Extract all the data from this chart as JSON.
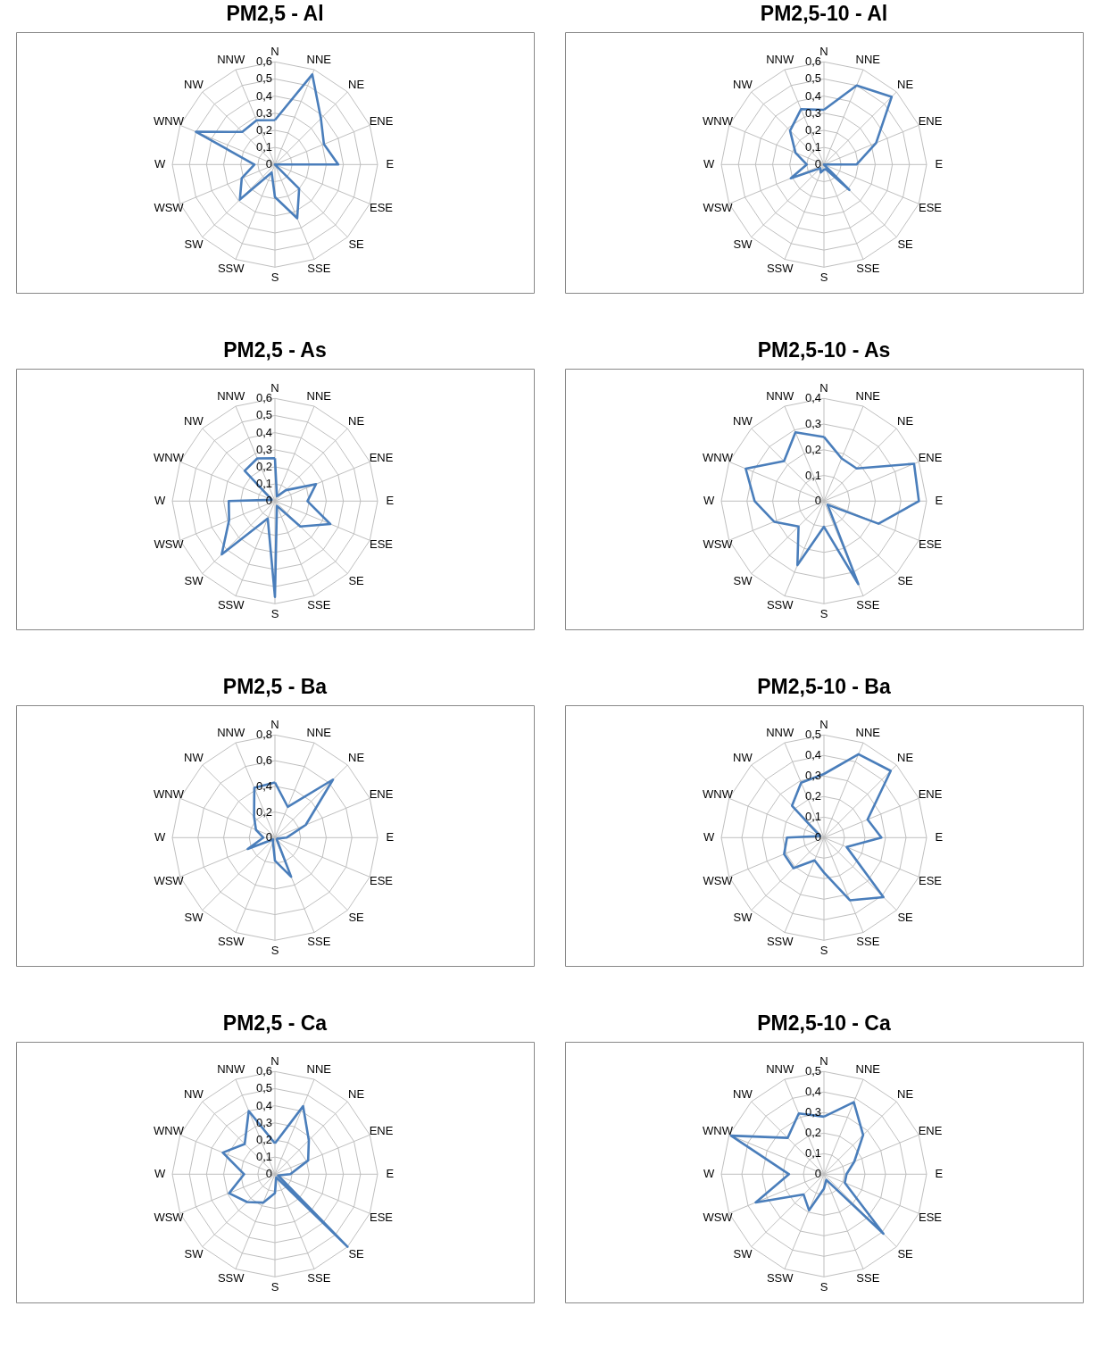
{
  "chart_data": [
    {
      "type": "radar",
      "title": "PM2,5 - Al",
      "categories": [
        "N",
        "NNE",
        "NE",
        "ENE",
        "E",
        "ESE",
        "SE",
        "SSE",
        "S",
        "SSW",
        "SW",
        "WSW",
        "W",
        "WNW",
        "NW",
        "NNW"
      ],
      "ylim": [
        0,
        0.6
      ],
      "yticks": [
        {
          "value": 0,
          "label": "0"
        },
        {
          "value": 0.1,
          "label": "0,1"
        },
        {
          "value": 0.2,
          "label": "0,2"
        },
        {
          "value": 0.3,
          "label": "0,3"
        },
        {
          "value": 0.4,
          "label": "0,4"
        },
        {
          "value": 0.5,
          "label": "0,5"
        },
        {
          "value": 0.6,
          "label": "0,6"
        }
      ],
      "grid": true,
      "series": [
        {
          "color": "#4a7ebb",
          "values": [
            0.26,
            0.57,
            0.38,
            0.31,
            0.37,
            0.0,
            0.2,
            0.34,
            0.19,
            0.05,
            0.29,
            0.21,
            0.12,
            0.5,
            0.27,
            0.28
          ]
        }
      ]
    },
    {
      "type": "radar",
      "title": "PM2,5-10 - Al",
      "categories": [
        "N",
        "NNE",
        "NE",
        "ENE",
        "E",
        "ESE",
        "SE",
        "SSE",
        "S",
        "SSW",
        "SW",
        "WSW",
        "W",
        "WNW",
        "NW",
        "NNW"
      ],
      "ylim": [
        0,
        0.6
      ],
      "yticks": [
        {
          "value": 0,
          "label": "0"
        },
        {
          "value": 0.1,
          "label": "0,1"
        },
        {
          "value": 0.2,
          "label": "0,2"
        },
        {
          "value": 0.3,
          "label": "0,3"
        },
        {
          "value": 0.4,
          "label": "0,4"
        },
        {
          "value": 0.5,
          "label": "0,5"
        },
        {
          "value": 0.6,
          "label": "0,6"
        }
      ],
      "grid": true,
      "series": [
        {
          "color": "#4a7ebb",
          "values": [
            0.32,
            0.5,
            0.56,
            0.33,
            0.19,
            0.0,
            0.21,
            0.03,
            0.03,
            0.05,
            0.03,
            0.21,
            0.1,
            0.18,
            0.28,
            0.35
          ]
        }
      ]
    },
    {
      "type": "radar",
      "title": "PM2,5 - As",
      "categories": [
        "N",
        "NNE",
        "NE",
        "ENE",
        "E",
        "ESE",
        "SE",
        "SSE",
        "S",
        "SSW",
        "SW",
        "WSW",
        "W",
        "WNW",
        "NW",
        "NNW"
      ],
      "ylim": [
        0,
        0.6
      ],
      "yticks": [
        {
          "value": 0,
          "label": "0"
        },
        {
          "value": 0.1,
          "label": "0,1"
        },
        {
          "value": 0.2,
          "label": "0,2"
        },
        {
          "value": 0.3,
          "label": "0,3"
        },
        {
          "value": 0.4,
          "label": "0,4"
        },
        {
          "value": 0.5,
          "label": "0,5"
        },
        {
          "value": 0.6,
          "label": "0,6"
        }
      ],
      "grid": true,
      "series": [
        {
          "color": "#4a7ebb",
          "values": [
            0.25,
            0.03,
            0.09,
            0.26,
            0.19,
            0.35,
            0.21,
            0.03,
            0.56,
            0.11,
            0.44,
            0.29,
            0.27,
            0.02,
            0.25,
            0.27
          ]
        }
      ]
    },
    {
      "type": "radar",
      "title": "PM2,5-10 - As",
      "categories": [
        "N",
        "NNE",
        "NE",
        "ENE",
        "E",
        "ESE",
        "SE",
        "SSE",
        "S",
        "SSW",
        "SW",
        "WSW",
        "W",
        "WNW",
        "NW",
        "NNW"
      ],
      "ylim": [
        0,
        0.4
      ],
      "yticks": [
        {
          "value": 0,
          "label": "0"
        },
        {
          "value": 0.1,
          "label": "0,1"
        },
        {
          "value": 0.2,
          "label": "0,2"
        },
        {
          "value": 0.3,
          "label": "0,3"
        },
        {
          "value": 0.4,
          "label": "0,4"
        }
      ],
      "grid": true,
      "series": [
        {
          "color": "#4a7ebb",
          "values": [
            0.25,
            0.18,
            0.18,
            0.38,
            0.37,
            0.23,
            0.02,
            0.35,
            0.1,
            0.27,
            0.14,
            0.21,
            0.27,
            0.33,
            0.22,
            0.29
          ]
        }
      ]
    },
    {
      "type": "radar",
      "title": "PM2,5 - Ba",
      "categories": [
        "N",
        "NNE",
        "NE",
        "ENE",
        "E",
        "ESE",
        "SE",
        "SSE",
        "S",
        "SSW",
        "SW",
        "WSW",
        "W",
        "WNW",
        "NW",
        "NNW"
      ],
      "ylim": [
        0,
        0.8
      ],
      "yticks": [
        {
          "value": 0,
          "label": "0"
        },
        {
          "value": 0.2,
          "label": "0,2"
        },
        {
          "value": 0.4,
          "label": "0,4"
        },
        {
          "value": 0.6,
          "label": "0,6"
        },
        {
          "value": 0.8,
          "label": "0,8"
        }
      ],
      "grid": true,
      "series": [
        {
          "color": "#4a7ebb",
          "values": [
            0.43,
            0.26,
            0.64,
            0.26,
            0.09,
            0.02,
            0.02,
            0.33,
            0.18,
            0.04,
            0.02,
            0.23,
            0.09,
            0.16,
            0.23,
            0.42
          ]
        }
      ]
    },
    {
      "type": "radar",
      "title": "PM2,5-10 - Ba",
      "categories": [
        "N",
        "NNE",
        "NE",
        "ENE",
        "E",
        "ESE",
        "SE",
        "SSE",
        "S",
        "SSW",
        "SW",
        "WSW",
        "W",
        "WNW",
        "NW",
        "NNW"
      ],
      "ylim": [
        0,
        0.5
      ],
      "yticks": [
        {
          "value": 0,
          "label": "0"
        },
        {
          "value": 0.1,
          "label": "0,1"
        },
        {
          "value": 0.2,
          "label": "0,2"
        },
        {
          "value": 0.3,
          "label": "0,3"
        },
        {
          "value": 0.4,
          "label": "0,4"
        },
        {
          "value": 0.5,
          "label": "0,5"
        }
      ],
      "grid": true,
      "series": [
        {
          "color": "#4a7ebb",
          "values": [
            0.31,
            0.44,
            0.46,
            0.23,
            0.28,
            0.12,
            0.41,
            0.33,
            0.17,
            0.12,
            0.21,
            0.21,
            0.18,
            0.02,
            0.22,
            0.29
          ]
        }
      ]
    },
    {
      "type": "radar",
      "title": "PM2,5 - Ca",
      "categories": [
        "N",
        "NNE",
        "NE",
        "ENE",
        "E",
        "ESE",
        "SE",
        "SSE",
        "S",
        "SSW",
        "SW",
        "WSW",
        "W",
        "WNW",
        "NW",
        "NNW"
      ],
      "ylim": [
        0,
        0.6
      ],
      "yticks": [
        {
          "value": 0,
          "label": "0"
        },
        {
          "value": 0.1,
          "label": "0,1"
        },
        {
          "value": 0.2,
          "label": "0,2"
        },
        {
          "value": 0.3,
          "label": "0,3"
        },
        {
          "value": 0.4,
          "label": "0,4"
        },
        {
          "value": 0.5,
          "label": "0,5"
        },
        {
          "value": 0.6,
          "label": "0,6"
        }
      ],
      "grid": true,
      "series": [
        {
          "color": "#4a7ebb",
          "values": [
            0.18,
            0.43,
            0.28,
            0.21,
            0.09,
            0.02,
            0.6,
            0.02,
            0.11,
            0.18,
            0.23,
            0.29,
            0.18,
            0.33,
            0.25,
            0.4
          ]
        }
      ]
    },
    {
      "type": "radar",
      "title": "PM2,5-10 - Ca",
      "categories": [
        "N",
        "NNE",
        "NE",
        "ENE",
        "E",
        "ESE",
        "SE",
        "SSE",
        "S",
        "SSW",
        "SW",
        "WSW",
        "W",
        "WNW",
        "NW",
        "NNW"
      ],
      "ylim": [
        0,
        0.5
      ],
      "yticks": [
        {
          "value": 0,
          "label": "0"
        },
        {
          "value": 0.1,
          "label": "0,1"
        },
        {
          "value": 0.2,
          "label": "0,2"
        },
        {
          "value": 0.3,
          "label": "0,3"
        },
        {
          "value": 0.4,
          "label": "0,4"
        },
        {
          "value": 0.5,
          "label": "0,5"
        }
      ],
      "grid": true,
      "series": [
        {
          "color": "#4a7ebb",
          "values": [
            0.28,
            0.38,
            0.27,
            0.16,
            0.11,
            0.11,
            0.41,
            0.03,
            0.07,
            0.19,
            0.14,
            0.36,
            0.17,
            0.49,
            0.25,
            0.32
          ]
        }
      ]
    }
  ]
}
